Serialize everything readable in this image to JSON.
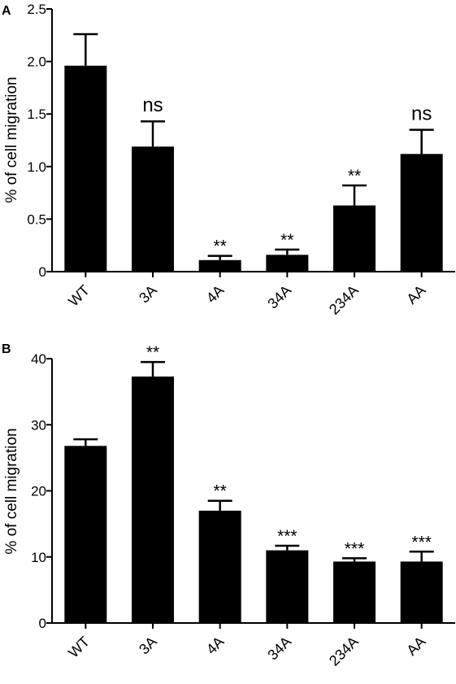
{
  "chart_data": [
    {
      "type": "bar",
      "panel": "A",
      "categories": [
        "WT",
        "3A",
        "4A",
        "34A",
        "234A",
        "AA"
      ],
      "values": [
        1.96,
        1.19,
        0.11,
        0.16,
        0.63,
        1.12
      ],
      "errors": [
        0.3,
        0.24,
        0.04,
        0.05,
        0.19,
        0.23
      ],
      "annotations": [
        "",
        "ns",
        "**",
        "**",
        "**",
        "ns"
      ],
      "ylabel": "% of cell migration",
      "xlabel": "",
      "ylim": [
        0,
        2.5
      ],
      "yticks": [
        "0",
        "0.5",
        "1.0",
        "1.5",
        "2.0",
        "2.5"
      ],
      "bar_color": "#000000"
    },
    {
      "type": "bar",
      "panel": "B",
      "categories": [
        "WT",
        "3A",
        "4A",
        "34A",
        "234A",
        "AA"
      ],
      "values": [
        26.8,
        37.3,
        17.0,
        11.0,
        9.3,
        9.3
      ],
      "errors": [
        1.0,
        2.2,
        1.5,
        0.7,
        0.5,
        1.5
      ],
      "annotations": [
        "",
        "**",
        "**",
        "***",
        "***",
        "***"
      ],
      "ylabel": "% of cell migration",
      "xlabel": "",
      "ylim": [
        0,
        40
      ],
      "yticks": [
        "0",
        "10",
        "20",
        "30",
        "40"
      ],
      "bar_color": "#000000"
    }
  ]
}
